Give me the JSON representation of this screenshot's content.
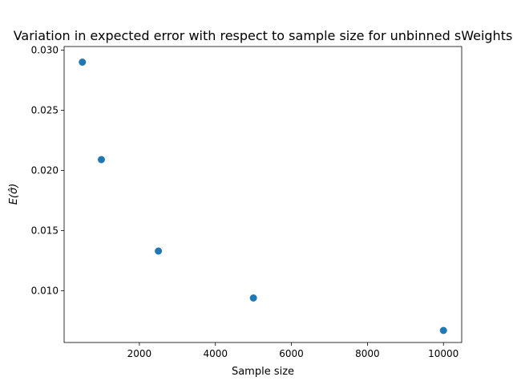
{
  "chart_data": {
    "type": "scatter",
    "title": "Variation in expected error with respect to sample size for unbinned sWeights",
    "xlabel": "Sample size",
    "ylabel": "E(σ̂)",
    "xlim": [
      20,
      10480
    ],
    "ylim": [
      0.0057,
      0.0303
    ],
    "x_ticks": [
      2000,
      4000,
      6000,
      8000,
      10000
    ],
    "y_ticks": [
      0.01,
      0.015,
      0.02,
      0.025,
      0.03
    ],
    "x_tick_labels": [
      "2000",
      "4000",
      "6000",
      "8000",
      "10000"
    ],
    "y_tick_labels": [
      "0.010",
      "0.015",
      "0.020",
      "0.025",
      "0.030"
    ],
    "grid": false,
    "series": [
      {
        "color": "#1f77b4",
        "x": [
          500,
          1000,
          2500,
          5000,
          10000
        ],
        "y": [
          0.029,
          0.0209,
          0.0133,
          0.0094,
          0.0067
        ]
      }
    ]
  }
}
